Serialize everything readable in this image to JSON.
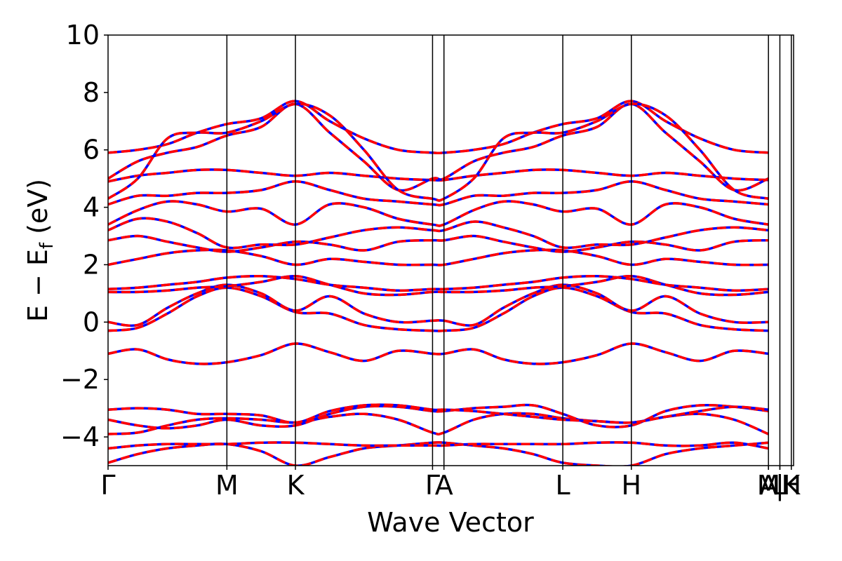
{
  "chart_data": {
    "type": "line",
    "title": "",
    "xlabel": "Wave Vector",
    "ylabel": "E − E",
    "ylabel_sub": "f",
    "ylabel_unit": " (eV)",
    "ylim": [
      -5,
      10
    ],
    "yticks": [
      {
        "value": -4,
        "label": "−4"
      },
      {
        "value": -2,
        "label": "−2"
      },
      {
        "value": 0,
        "label": "0"
      },
      {
        "value": 2,
        "label": "2"
      },
      {
        "value": 4,
        "label": "4"
      },
      {
        "value": 6,
        "label": "6"
      },
      {
        "value": 8,
        "label": "8"
      },
      {
        "value": 10,
        "label": "10"
      }
    ],
    "xlim": [
      0,
      6.0
    ],
    "kpoints": [
      {
        "x": 0.0,
        "label": "Γ"
      },
      {
        "x": 1.04,
        "label": "M"
      },
      {
        "x": 1.64,
        "label": "K"
      },
      {
        "x": 2.84,
        "label": "Γ"
      },
      {
        "x": 2.94,
        "label": "A"
      },
      {
        "x": 3.98,
        "label": "L"
      },
      {
        "x": 4.58,
        "label": "H"
      },
      {
        "x": 5.78,
        "label": "A"
      },
      {
        "x": 5.78,
        "label": "M"
      },
      {
        "x": 5.88,
        "label": "|"
      },
      {
        "x": 5.88,
        "label": "L"
      },
      {
        "x": 5.98,
        "label": "H"
      },
      {
        "x": 5.98,
        "label": "K"
      }
    ],
    "grid": false,
    "legend": "none",
    "colors": {
      "series_a": "#0000ff",
      "series_b": "#ff0000"
    },
    "x": [
      0.0,
      0.26,
      0.52,
      0.78,
      1.04,
      1.34,
      1.64,
      1.94,
      2.24,
      2.54,
      2.84,
      2.94,
      3.2,
      3.46,
      3.72,
      3.98,
      4.28,
      4.58,
      4.88,
      5.18,
      5.48,
      5.78
    ],
    "series": [
      {
        "values": [
          -4.9,
          -4.6,
          -4.4,
          -4.3,
          -4.25,
          -4.5,
          -5.0,
          -4.7,
          -4.4,
          -4.3,
          -4.2,
          -4.2,
          -4.3,
          -4.4,
          -4.6,
          -4.9,
          -5.0,
          -5.0,
          -4.6,
          -4.4,
          -4.3,
          -4.2
        ]
      },
      {
        "values": [
          -4.4,
          -4.3,
          -4.25,
          -4.25,
          -4.25,
          -4.2,
          -4.2,
          -4.25,
          -4.3,
          -4.3,
          -4.3,
          -4.3,
          -4.25,
          -4.25,
          -4.25,
          -4.25,
          -4.2,
          -4.2,
          -4.3,
          -4.3,
          -4.2,
          -4.4
        ]
      },
      {
        "values": [
          -3.9,
          -3.85,
          -3.6,
          -3.4,
          -3.35,
          -3.4,
          -3.5,
          -3.3,
          -3.2,
          -3.4,
          -3.85,
          -3.85,
          -3.4,
          -3.2,
          -3.2,
          -3.35,
          -3.45,
          -3.5,
          -3.3,
          -3.2,
          -3.4,
          -3.9
        ]
      },
      {
        "values": [
          -3.4,
          -3.6,
          -3.7,
          -3.6,
          -3.4,
          -3.6,
          -3.6,
          -3.2,
          -2.95,
          -2.95,
          -3.1,
          -3.1,
          -3.0,
          -2.95,
          -2.9,
          -3.2,
          -3.6,
          -3.6,
          -3.1,
          -2.9,
          -2.95,
          -3.1
        ]
      },
      {
        "values": [
          -3.05,
          -3.0,
          -3.05,
          -3.2,
          -3.2,
          -3.25,
          -3.5,
          -3.1,
          -2.9,
          -2.9,
          -3.05,
          -3.05,
          -3.1,
          -3.2,
          -3.3,
          -3.4,
          -3.45,
          -3.5,
          -3.3,
          -3.1,
          -2.95,
          -3.05
        ]
      },
      {
        "values": [
          -1.1,
          -0.95,
          -1.3,
          -1.45,
          -1.4,
          -1.15,
          -0.75,
          -1.05,
          -1.35,
          -1.0,
          -1.1,
          -1.1,
          -0.95,
          -1.3,
          -1.45,
          -1.4,
          -1.15,
          -0.75,
          -1.05,
          -1.35,
          -1.0,
          -1.1
        ]
      },
      {
        "values": [
          -0.3,
          -0.2,
          0.3,
          0.9,
          1.2,
          0.9,
          0.35,
          0.3,
          -0.1,
          -0.25,
          -0.3,
          -0.3,
          -0.2,
          0.3,
          0.9,
          1.2,
          0.9,
          0.35,
          0.3,
          -0.1,
          -0.25,
          -0.3
        ]
      },
      {
        "values": [
          0.0,
          -0.1,
          0.5,
          1.0,
          1.3,
          1.0,
          0.4,
          0.9,
          0.3,
          0.0,
          0.05,
          0.05,
          -0.1,
          0.5,
          1.0,
          1.3,
          1.0,
          0.4,
          0.9,
          0.3,
          0.0,
          0.0
        ]
      },
      {
        "values": [
          1.05,
          1.05,
          1.1,
          1.2,
          1.25,
          1.4,
          1.6,
          1.3,
          1.0,
          0.95,
          1.05,
          1.05,
          1.05,
          1.1,
          1.2,
          1.25,
          1.4,
          1.6,
          1.3,
          1.0,
          0.95,
          1.05
        ]
      },
      {
        "values": [
          1.15,
          1.2,
          1.3,
          1.4,
          1.55,
          1.6,
          1.5,
          1.3,
          1.2,
          1.1,
          1.15,
          1.15,
          1.2,
          1.3,
          1.4,
          1.55,
          1.6,
          1.5,
          1.3,
          1.2,
          1.1,
          1.15
        ]
      },
      {
        "values": [
          2.0,
          2.2,
          2.4,
          2.5,
          2.5,
          2.3,
          2.0,
          2.2,
          2.1,
          2.0,
          2.0,
          2.0,
          2.2,
          2.4,
          2.5,
          2.5,
          2.3,
          2.0,
          2.2,
          2.1,
          2.0,
          2.0
        ]
      },
      {
        "values": [
          2.85,
          3.0,
          2.8,
          2.6,
          2.45,
          2.6,
          2.8,
          2.7,
          2.5,
          2.8,
          2.85,
          2.85,
          3.0,
          2.8,
          2.6,
          2.45,
          2.6,
          2.8,
          2.7,
          2.5,
          2.8,
          2.85
        ]
      },
      {
        "values": [
          3.2,
          3.6,
          3.5,
          3.1,
          2.6,
          2.7,
          2.7,
          2.95,
          3.2,
          3.3,
          3.2,
          3.2,
          3.5,
          3.3,
          3.0,
          2.6,
          2.7,
          2.7,
          2.95,
          3.2,
          3.3,
          3.2
        ]
      },
      {
        "values": [
          3.4,
          3.9,
          4.2,
          4.1,
          3.85,
          3.95,
          3.4,
          4.1,
          4.0,
          3.6,
          3.4,
          3.4,
          3.9,
          4.2,
          4.1,
          3.85,
          3.95,
          3.4,
          4.1,
          4.0,
          3.6,
          3.4
        ]
      },
      {
        "values": [
          4.1,
          4.4,
          4.4,
          4.5,
          4.5,
          4.6,
          4.9,
          4.6,
          4.3,
          4.2,
          4.1,
          4.1,
          4.4,
          4.4,
          4.5,
          4.5,
          4.6,
          4.9,
          4.6,
          4.3,
          4.2,
          4.1
        ]
      },
      {
        "values": [
          4.9,
          5.1,
          5.2,
          5.3,
          5.3,
          5.2,
          5.1,
          5.2,
          5.1,
          5.0,
          4.95,
          4.95,
          5.1,
          5.2,
          5.3,
          5.3,
          5.2,
          5.1,
          5.2,
          5.1,
          5.0,
          4.95
        ]
      },
      {
        "values": [
          5.0,
          5.6,
          5.9,
          6.1,
          6.5,
          6.8,
          7.6,
          6.6,
          5.6,
          4.6,
          5.0,
          5.0,
          5.6,
          5.9,
          6.1,
          6.5,
          6.8,
          7.6,
          6.6,
          5.6,
          4.6,
          5.0
        ]
      },
      {
        "values": [
          5.9,
          6.0,
          6.2,
          6.6,
          6.9,
          7.1,
          7.7,
          7.0,
          6.4,
          6.0,
          5.9,
          5.9,
          6.0,
          6.2,
          6.6,
          6.9,
          7.1,
          7.7,
          7.0,
          6.4,
          6.0,
          5.9
        ]
      },
      {
        "values": [
          4.3,
          5.0,
          6.4,
          6.6,
          6.6,
          7.0,
          7.6,
          7.2,
          6.0,
          4.6,
          4.3,
          4.3,
          5.0,
          6.4,
          6.6,
          6.6,
          7.0,
          7.6,
          7.2,
          6.0,
          4.6,
          4.3
        ]
      }
    ]
  }
}
